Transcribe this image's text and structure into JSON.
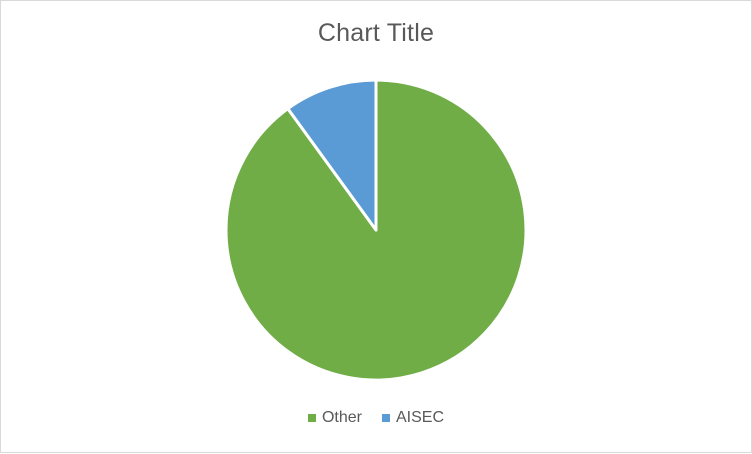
{
  "chart_data": {
    "type": "pie",
    "title": "Chart Title",
    "categories": [
      "Other",
      "AISEC"
    ],
    "values": [
      90,
      10
    ],
    "colors": [
      "#70ad47",
      "#5b9bd5"
    ],
    "legend_position": "bottom",
    "start_angle": "top",
    "direction": "clockwise"
  }
}
